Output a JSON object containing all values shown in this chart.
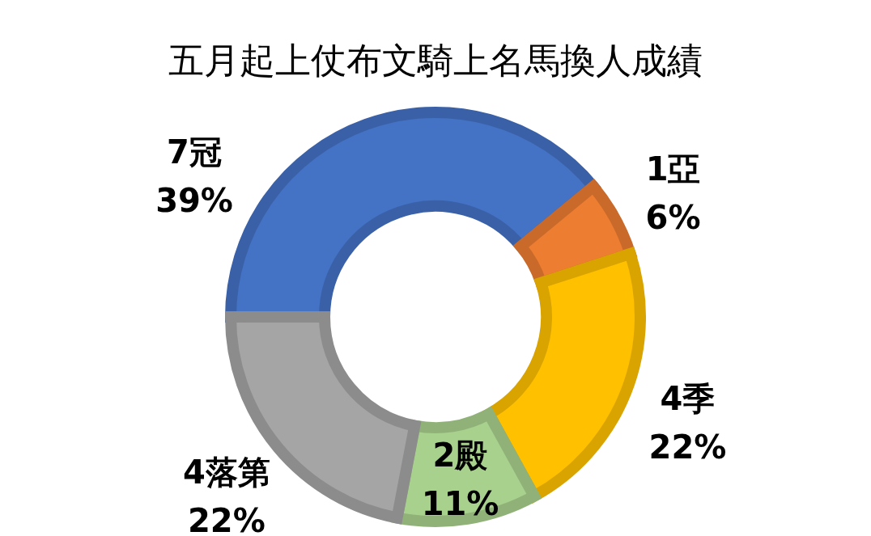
{
  "chart_data": {
    "type": "donut",
    "title": "五月起上仗布文騎上名馬換人成績",
    "categories": [
      "7冠",
      "1亞",
      "4季",
      "2殿",
      "4落第"
    ],
    "values": [
      39,
      6,
      22,
      11,
      22
    ],
    "colors": [
      "#4472c4",
      "#ed7d31",
      "#ffc000",
      "#a9d18e",
      "#a5a5a5"
    ],
    "value_labels": [
      "39%",
      "6%",
      "22%",
      "11%",
      "22%"
    ],
    "legend": false
  }
}
